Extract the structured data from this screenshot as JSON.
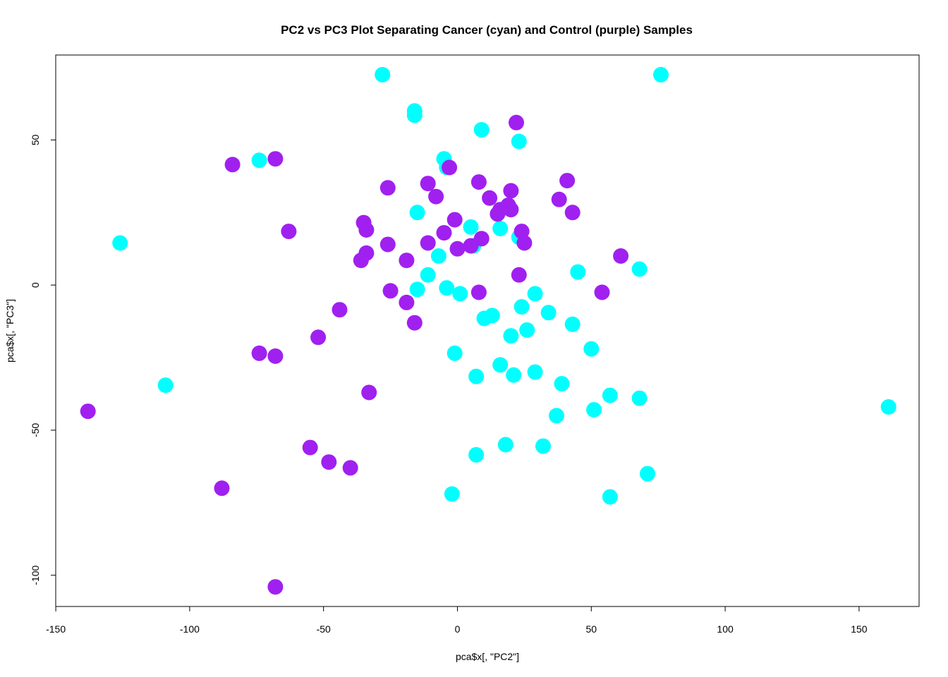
{
  "chart_data": {
    "type": "scatter",
    "title": "PC2 vs PC3 Plot Separating Cancer (cyan) and Control (purple) Samples",
    "xlabel": "pca$x[, \"PC2\"]",
    "ylabel": "pca$x[, \"PC3\"]",
    "xlim": [
      -150,
      172
    ],
    "ylim": [
      -110,
      80
    ],
    "xticks": [
      -150,
      -100,
      -50,
      0,
      50,
      100,
      150
    ],
    "yticks": [
      -100,
      -50,
      0,
      50
    ],
    "grid": false,
    "legend": "none",
    "series": [
      {
        "color": "#00FFFF",
        "points": [
          [
            -28,
            72.5
          ],
          [
            76,
            72.5
          ],
          [
            -16,
            60
          ],
          [
            -16,
            58.5
          ],
          [
            9,
            53.5
          ],
          [
            23,
            49.5
          ],
          [
            -74,
            43
          ],
          [
            -5,
            43.5
          ],
          [
            -4,
            40.5
          ],
          [
            -15,
            25
          ],
          [
            5,
            20
          ],
          [
            16,
            19.5
          ],
          [
            6,
            13.5
          ],
          [
            23,
            16.5
          ],
          [
            -7,
            10
          ],
          [
            -126,
            14.5
          ],
          [
            -11,
            3.5
          ],
          [
            45,
            4.5
          ],
          [
            68,
            5.5
          ],
          [
            -15,
            -1.5
          ],
          [
            -4,
            -1
          ],
          [
            1,
            -3
          ],
          [
            29,
            -3
          ],
          [
            24,
            -7.5
          ],
          [
            34,
            -9.5
          ],
          [
            13,
            -10.5
          ],
          [
            10,
            -11.5
          ],
          [
            43,
            -13.5
          ],
          [
            26,
            -15.5
          ],
          [
            20,
            -17.5
          ],
          [
            50,
            -22
          ],
          [
            -1,
            -23.5
          ],
          [
            16,
            -27.5
          ],
          [
            29,
            -30
          ],
          [
            21,
            -31
          ],
          [
            7,
            -31.5
          ],
          [
            -109,
            -34.5
          ],
          [
            39,
            -34
          ],
          [
            57,
            -38
          ],
          [
            68,
            -39
          ],
          [
            51,
            -43
          ],
          [
            161,
            -42
          ],
          [
            37,
            -45
          ],
          [
            18,
            -55
          ],
          [
            32,
            -55.5
          ],
          [
            7,
            -58.5
          ],
          [
            71,
            -65
          ],
          [
            -2,
            -72
          ],
          [
            57,
            -73
          ]
        ]
      },
      {
        "color": "#A020F0",
        "points": [
          [
            22,
            56
          ],
          [
            -68,
            43.5
          ],
          [
            -84,
            41.5
          ],
          [
            -3,
            40.5
          ],
          [
            41,
            36
          ],
          [
            -11,
            35
          ],
          [
            8,
            35.5
          ],
          [
            -26,
            33.5
          ],
          [
            20,
            32.5
          ],
          [
            -8,
            30.5
          ],
          [
            12,
            30
          ],
          [
            38,
            29.5
          ],
          [
            19,
            27.5
          ],
          [
            15,
            24.5
          ],
          [
            16,
            26
          ],
          [
            20,
            26
          ],
          [
            43,
            25
          ],
          [
            -1,
            22.5
          ],
          [
            -35,
            21.5
          ],
          [
            -34,
            19
          ],
          [
            -63,
            18.5
          ],
          [
            -5,
            18
          ],
          [
            24,
            18.5
          ],
          [
            9,
            16
          ],
          [
            -26,
            14
          ],
          [
            -11,
            14.5
          ],
          [
            25,
            14.5
          ],
          [
            5,
            13.5
          ],
          [
            0,
            12.5
          ],
          [
            -34,
            11
          ],
          [
            61,
            10
          ],
          [
            -36,
            8.5
          ],
          [
            -19,
            8.5
          ],
          [
            23,
            3.5
          ],
          [
            8,
            -2.5
          ],
          [
            -25,
            -2
          ],
          [
            54,
            -2.5
          ],
          [
            -19,
            -6
          ],
          [
            -44,
            -8.5
          ],
          [
            -16,
            -13
          ],
          [
            -52,
            -18
          ],
          [
            -74,
            -23.5
          ],
          [
            -68,
            -24.5
          ],
          [
            -33,
            -37
          ],
          [
            -138,
            -43.5
          ],
          [
            -55,
            -56
          ],
          [
            -48,
            -61
          ],
          [
            -40,
            -63
          ],
          [
            -88,
            -70
          ],
          [
            -68,
            -104
          ]
        ]
      }
    ]
  }
}
